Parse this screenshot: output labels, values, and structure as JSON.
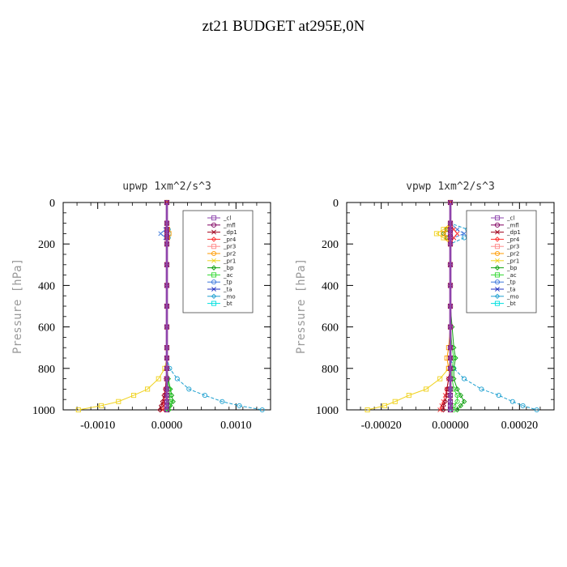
{
  "title": "zt21  BUDGET at295E,0N",
  "colors": {
    "_cl": "#8e44ad",
    "_mfl": "#800060",
    "_dp1": "#a0001c",
    "_pr4": "#ff3030",
    "_pr3": "#ff8c8c",
    "_pr2": "#ff9b00",
    "_pr1": "#f0d21e",
    "_bp": "#10a010",
    "_ac": "#30d830",
    "_tp": "#3c78dc",
    "_ta": "#2030c0",
    "_mo": "#1ea0d0",
    "_bt": "#00e0e0"
  },
  "legend_entries": [
    "_cl",
    "_mfl",
    "_dp1",
    "_pr4",
    "_pr3",
    "_pr2",
    "_pr1",
    "_bp",
    "_ac",
    "_tp",
    "_ta",
    "_mo",
    "_bt"
  ],
  "chart_data": [
    {
      "type": "line",
      "title": "upwp   1xm^2/s^3",
      "ylabel": "Pressure [hPa]",
      "xlabel": "",
      "xlim": [
        -0.0015,
        0.0015
      ],
      "ylim": [
        1000,
        0
      ],
      "xticks": [
        -0.001,
        0.0,
        0.001
      ],
      "xtick_labels": [
        "-0.0010",
        "0.0000",
        "0.0010"
      ],
      "yticks": [
        0,
        200,
        400,
        600,
        800,
        1000
      ],
      "ytick_labels": [
        "0",
        "200",
        "400",
        "600",
        "800",
        "1000"
      ],
      "legend_position": "top-right",
      "levels": [
        0,
        100,
        130,
        150,
        170,
        200,
        300,
        400,
        500,
        600,
        700,
        750,
        800,
        850,
        900,
        930,
        960,
        980,
        1000
      ],
      "series": [
        {
          "name": "_pr1",
          "values": [
            0,
            0,
            0,
            0,
            0,
            0,
            0,
            0,
            0,
            0,
            0,
            0,
            -3e-05,
            -0.00012,
            -0.00028,
            -0.00048,
            -0.0007,
            -0.00095,
            -0.00128
          ]
        },
        {
          "name": "_mo",
          "values": [
            0,
            0,
            2e-05,
            3e-05,
            2e-05,
            0,
            0,
            0,
            0,
            0,
            0,
            0,
            4e-05,
            0.00015,
            0.00032,
            0.00055,
            0.0008,
            0.00105,
            0.00138
          ]
        },
        {
          "name": "_tp",
          "values": [
            0,
            0,
            -2e-05,
            -9e-05,
            -2e-05,
            0,
            0,
            0,
            0,
            0,
            0,
            0,
            0,
            0,
            0,
            0,
            0,
            0,
            0
          ]
        },
        {
          "name": "_bp",
          "values": [
            0,
            0,
            0,
            0,
            0,
            0,
            0,
            0,
            0,
            0,
            0,
            0,
            0,
            2e-05,
            5e-05,
            7e-05,
            9e-05,
            5e-05,
            3e-05
          ]
        },
        {
          "name": "_pr2",
          "values": [
            0,
            0,
            1e-05,
            3e-05,
            1e-05,
            0,
            0,
            0,
            0,
            0,
            0,
            0,
            0,
            0,
            0,
            0,
            0,
            0,
            0
          ]
        },
        {
          "name": "_ac",
          "values": [
            0,
            0,
            0,
            0,
            0,
            0,
            0,
            0,
            0,
            0,
            0,
            0,
            0,
            1e-05,
            3e-05,
            4e-05,
            5e-05,
            3e-05,
            2e-05
          ]
        },
        {
          "name": "_pr4",
          "values": [
            0,
            0,
            0,
            0,
            0,
            0,
            0,
            0,
            0,
            0,
            0,
            0,
            0,
            -1e-05,
            -2e-05,
            -3e-05,
            -4e-05,
            -5e-05,
            -6e-05
          ]
        },
        {
          "name": "_dp1",
          "values": [
            0,
            0,
            0,
            0,
            0,
            0,
            0,
            0,
            0,
            0,
            0,
            0,
            0,
            -1e-05,
            -2e-05,
            -4e-05,
            -6e-05,
            -8e-05,
            -0.0001
          ]
        },
        {
          "name": "_mfl",
          "values": [
            0,
            0,
            0,
            0,
            0,
            0,
            0,
            0,
            0,
            0,
            0,
            0,
            0,
            0,
            0,
            0,
            0,
            0,
            0
          ]
        },
        {
          "name": "_cl",
          "values": [
            0,
            0,
            0,
            0,
            0,
            0,
            0,
            0,
            0,
            0,
            0,
            0,
            0,
            0,
            0,
            0,
            0,
            0,
            0
          ]
        }
      ]
    },
    {
      "type": "line",
      "title": "vpwp   1xm^2/s^3",
      "ylabel": "Pressure [hPa]",
      "xlabel": "",
      "xlim": [
        -0.0003,
        0.0003
      ],
      "ylim": [
        1000,
        0
      ],
      "xticks": [
        -0.0002,
        0.0,
        0.0002
      ],
      "xtick_labels": [
        "-0.00020",
        "0.00000",
        "0.00020"
      ],
      "yticks": [
        0,
        200,
        400,
        600,
        800,
        1000
      ],
      "ytick_labels": [
        "0",
        "200",
        "400",
        "600",
        "800",
        "1000"
      ],
      "legend_position": "top-right",
      "levels": [
        0,
        100,
        130,
        150,
        170,
        200,
        300,
        400,
        500,
        600,
        700,
        750,
        800,
        850,
        900,
        930,
        960,
        980,
        1000
      ],
      "series": [
        {
          "name": "_pr1",
          "values": [
            0,
            0,
            -2e-05,
            -4e-05,
            -2e-05,
            0,
            0,
            0,
            0,
            0,
            0,
            0,
            -5e-06,
            -3e-05,
            -7e-05,
            -0.00012,
            -0.00016,
            -0.00019,
            -0.00024
          ]
        },
        {
          "name": "_mo",
          "values": [
            0,
            0,
            5e-05,
            7e-05,
            4e-05,
            0,
            0,
            0,
            0,
            0,
            0,
            0,
            1e-05,
            4e-05,
            9e-05,
            0.00014,
            0.00018,
            0.00021,
            0.00025
          ]
        },
        {
          "name": "_tp",
          "values": [
            0,
            0,
            2e-05,
            4e-05,
            1e-05,
            0,
            0,
            0,
            0,
            0,
            0,
            0,
            0,
            0,
            0,
            0,
            0,
            0,
            0
          ]
        },
        {
          "name": "_bp",
          "values": [
            0,
            0,
            -1e-05,
            -2e-05,
            -1e-05,
            0,
            0,
            0,
            0,
            5e-06,
            1e-05,
            1.5e-05,
            1e-05,
            1e-05,
            2e-05,
            3e-05,
            4e-05,
            3e-05,
            2e-05
          ]
        },
        {
          "name": "_pr2",
          "values": [
            0,
            0,
            -1e-05,
            -2e-05,
            -1e-05,
            0,
            0,
            0,
            0,
            0,
            -5e-06,
            -1e-05,
            -5e-06,
            0,
            0,
            0,
            0,
            0,
            0
          ]
        },
        {
          "name": "_ac",
          "values": [
            0,
            0,
            0,
            0,
            0,
            0,
            0,
            0,
            0,
            0,
            5e-06,
            1e-05,
            5e-06,
            5e-06,
            1e-05,
            2e-05,
            2e-05,
            1e-05,
            1e-05
          ]
        },
        {
          "name": "_pr4",
          "values": [
            0,
            0,
            1e-05,
            2e-05,
            1e-05,
            0,
            0,
            0,
            0,
            0,
            0,
            0,
            0,
            -5e-06,
            -1e-05,
            -1.5e-05,
            -2e-05,
            -2.5e-05,
            -3e-05
          ]
        },
        {
          "name": "_dp1",
          "values": [
            0,
            0,
            0,
            0,
            0,
            0,
            0,
            0,
            0,
            0,
            0,
            0,
            0,
            -5e-06,
            -1e-05,
            -1e-05,
            -1.5e-05,
            -2e-05,
            -2e-05
          ]
        },
        {
          "name": "_mfl",
          "values": [
            0,
            0,
            0,
            0,
            0,
            0,
            0,
            0,
            0,
            0,
            0,
            0,
            0,
            0,
            0,
            0,
            0,
            0,
            0
          ]
        },
        {
          "name": "_cl",
          "values": [
            0,
            0,
            0,
            0,
            0,
            0,
            0,
            0,
            0,
            0,
            0,
            0,
            0,
            0,
            0,
            0,
            0,
            0,
            0
          ]
        }
      ]
    }
  ]
}
